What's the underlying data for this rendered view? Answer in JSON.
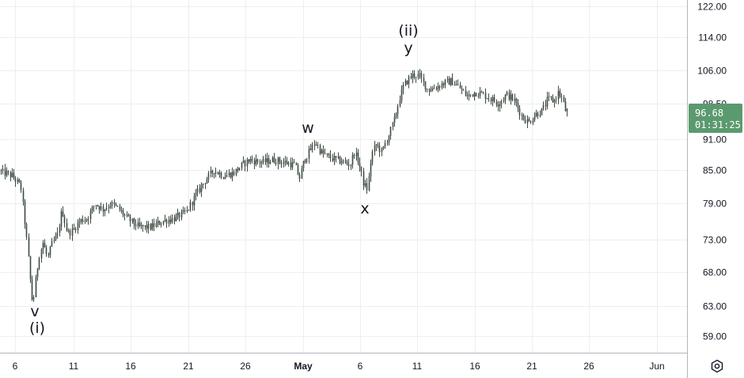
{
  "chart_data": {
    "type": "candlestick",
    "x_ticks": [
      "6",
      "11",
      "16",
      "21",
      "26",
      "May",
      "6",
      "11",
      "16",
      "21",
      "26",
      "Jun"
    ],
    "y_ticks": [
      "122.00",
      "114.00",
      "106.00",
      "98.50",
      "91.00",
      "85.00",
      "79.00",
      "73.00",
      "68.00",
      "63.00",
      "59.00"
    ],
    "y_scale": "log",
    "ylim": [
      56.5,
      124
    ],
    "grid": true,
    "current_price": "96.68",
    "countdown": "01:31:25",
    "price_tag_color": "#5b9a6f",
    "grid_color": "#eceef2",
    "candle_color": "#3d4a40",
    "wave_labels": [
      "v",
      "(i)",
      "w",
      "x",
      "y",
      "(ii)"
    ],
    "path": [
      [
        0,
        84.8
      ],
      [
        15,
        84.0
      ],
      [
        26,
        82.0
      ],
      [
        30,
        77.0
      ],
      [
        34,
        72.0
      ],
      [
        38,
        66.5
      ],
      [
        41,
        63.0
      ],
      [
        45,
        67.0
      ],
      [
        49,
        70.5
      ],
      [
        54,
        72.5
      ],
      [
        60,
        70.0
      ],
      [
        66,
        72.5
      ],
      [
        72,
        73.5
      ],
      [
        78,
        78.0
      ],
      [
        85,
        74.0
      ],
      [
        92,
        74.5
      ],
      [
        100,
        76.0
      ],
      [
        110,
        76.5
      ],
      [
        120,
        79.0
      ],
      [
        130,
        78.0
      ],
      [
        140,
        79.0
      ],
      [
        150,
        78.0
      ],
      [
        160,
        76.5
      ],
      [
        175,
        75.0
      ],
      [
        190,
        75.0
      ],
      [
        205,
        76.0
      ],
      [
        220,
        76.5
      ],
      [
        235,
        77.5
      ],
      [
        245,
        80.0
      ],
      [
        258,
        83.0
      ],
      [
        270,
        85.0
      ],
      [
        282,
        84.0
      ],
      [
        295,
        84.5
      ],
      [
        305,
        86.0
      ],
      [
        315,
        87.0
      ],
      [
        330,
        86.5
      ],
      [
        345,
        87.0
      ],
      [
        360,
        86.5
      ],
      [
        372,
        86.0
      ],
      [
        378,
        83.5
      ],
      [
        384,
        87.0
      ],
      [
        392,
        89.0
      ],
      [
        398,
        90.5
      ],
      [
        405,
        88.5
      ],
      [
        415,
        87.5
      ],
      [
        425,
        87.0
      ],
      [
        435,
        86.5
      ],
      [
        442,
        86.0
      ],
      [
        447,
        88.5
      ],
      [
        453,
        86.5
      ],
      [
        459,
        82.5
      ],
      [
        464,
        81.5
      ],
      [
        469,
        88.0
      ],
      [
        475,
        90.0
      ],
      [
        482,
        88.5
      ],
      [
        490,
        91.5
      ],
      [
        498,
        95.0
      ],
      [
        505,
        100.0
      ],
      [
        510,
        102.5
      ],
      [
        516,
        104.0
      ],
      [
        522,
        105.0
      ],
      [
        530,
        104.5
      ],
      [
        540,
        101.5
      ],
      [
        550,
        102.0
      ],
      [
        560,
        103.0
      ],
      [
        570,
        103.5
      ],
      [
        580,
        102.0
      ],
      [
        590,
        100.0
      ],
      [
        600,
        101.0
      ],
      [
        610,
        100.5
      ],
      [
        620,
        99.5
      ],
      [
        630,
        98.5
      ],
      [
        640,
        100.5
      ],
      [
        650,
        99.0
      ],
      [
        660,
        95.5
      ],
      [
        668,
        94.5
      ],
      [
        675,
        96.0
      ],
      [
        685,
        97.0
      ],
      [
        692,
        99.5
      ],
      [
        700,
        99.0
      ],
      [
        705,
        101.0
      ],
      [
        710,
        99.5
      ],
      [
        714,
        97.0
      ],
      [
        718,
        96.68
      ]
    ]
  }
}
